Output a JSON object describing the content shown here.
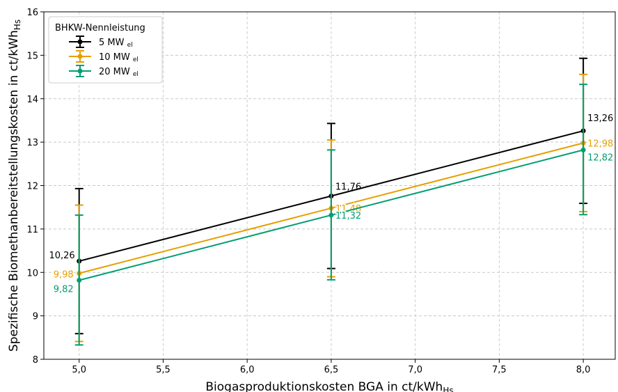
{
  "chart_data": {
    "type": "line",
    "x": [
      5.0,
      6.5,
      8.0
    ],
    "series": [
      {
        "name": "5 MW",
        "name_sub": "el",
        "color": "#000000",
        "values": [
          10.26,
          11.76,
          13.26
        ],
        "err_low": [
          8.59,
          10.09,
          11.59
        ],
        "err_high": [
          11.93,
          13.43,
          14.93
        ],
        "labels": [
          "10,26",
          "11,76",
          "13,26"
        ]
      },
      {
        "name": "10 MW",
        "name_sub": "el",
        "color": "#e69f00",
        "values": [
          9.98,
          11.48,
          12.98
        ],
        "err_low": [
          8.41,
          9.9,
          11.4
        ],
        "err_high": [
          11.55,
          13.05,
          14.56
        ],
        "labels": [
          "9,98",
          "11,48",
          "12,98"
        ]
      },
      {
        "name": "20 MW",
        "name_sub": "el",
        "color": "#009e73",
        "values": [
          9.82,
          11.32,
          12.82
        ],
        "err_low": [
          8.33,
          9.83,
          11.33
        ],
        "err_high": [
          11.32,
          12.82,
          14.33
        ],
        "labels": [
          "9,82",
          "11,32",
          "12,82"
        ]
      }
    ],
    "xlabel": "Biogasproduktionskosten BGA in ct/kWh",
    "xlabel_sub": "Hs",
    "ylabel": "Spezifische Biomethanbereitstellungskosten in ct/kWh",
    "ylabel_sub": "Hs",
    "xlim": [
      4.79,
      8.19
    ],
    "ylim": [
      8,
      16
    ],
    "xticks": [
      5.0,
      5.5,
      6.0,
      6.5,
      7.0,
      7.5,
      8.0
    ],
    "xtick_labels": [
      "5,0",
      "5,5",
      "6,0",
      "6,5",
      "7,0",
      "7,5",
      "8,0"
    ],
    "yticks": [
      8,
      9,
      10,
      11,
      12,
      13,
      14,
      15,
      16
    ],
    "ytick_labels": [
      "8",
      "9",
      "10",
      "11",
      "12",
      "13",
      "14",
      "15",
      "16"
    ],
    "grid": true,
    "legend_title": "BHKW-Nennleistung",
    "legend_position": "top-left"
  }
}
